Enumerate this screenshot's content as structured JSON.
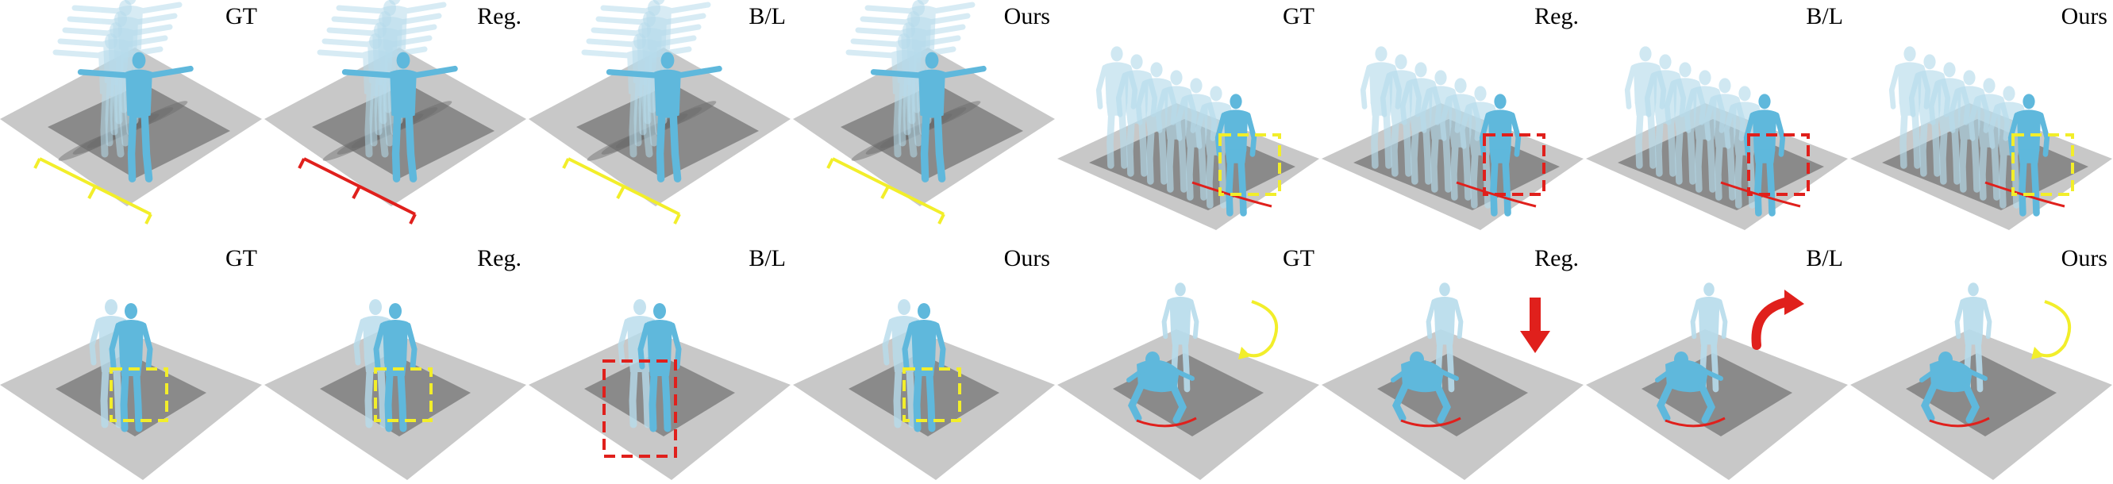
{
  "figure": {
    "top_row": {
      "walk_sequence_labels": [
        "GT",
        "Reg.",
        "B/L",
        "Ours"
      ],
      "stride_sequence_labels": [
        "GT",
        "Reg.",
        "B/L",
        "Ours"
      ]
    },
    "bottom_row": {
      "pair_labels": [
        "GT",
        "Reg.",
        "B/L",
        "Ours"
      ],
      "crouch_labels": [
        "GT",
        "Reg.",
        "B/L",
        "Ours"
      ]
    }
  },
  "colors": {
    "body": "#5fb8dc",
    "body_faded": "#b7dcec",
    "platform": "#c8c8c8",
    "platform_dark": "#8a8a8a",
    "highlight_good": "#f2ee2a",
    "highlight_bad": "#e0201c"
  },
  "icons": [
    "dashed-box-icon",
    "curved-arrow-icon",
    "down-arrow-icon",
    "bracket-icon"
  ]
}
